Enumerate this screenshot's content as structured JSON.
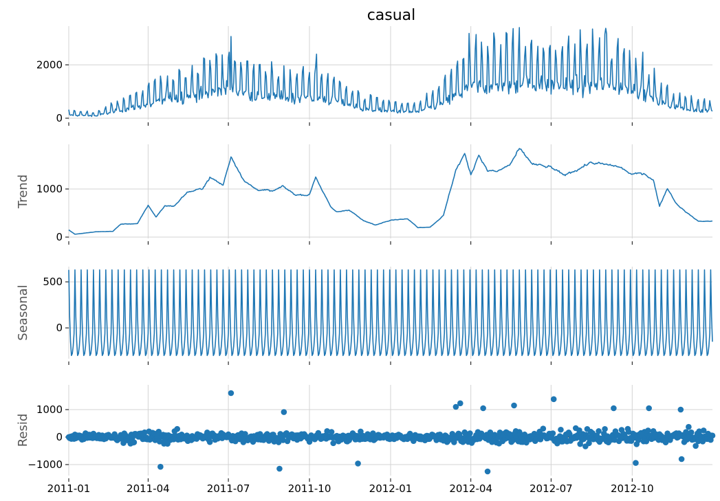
{
  "chart_data": {
    "type": "line",
    "title": "casual",
    "x_ticks": [
      "2011-01",
      "2011-04",
      "2011-07",
      "2011-10",
      "2012-01",
      "2012-04",
      "2012-07",
      "2012-10"
    ],
    "x_range": [
      "2011-01-01",
      "2012-12-31"
    ],
    "grid": true,
    "legend": "none",
    "colors": {
      "series": "#1f77b4",
      "grid": "#d3d3d3",
      "zero_line": "#000000",
      "label": "#555555"
    },
    "panels": [
      {
        "name": "observed",
        "ylabel": "",
        "ylim": [
          0,
          3400
        ],
        "yticks": [
          0,
          2000
        ],
        "ytick_labels": [
          "0",
          "2000"
        ],
        "style": "line",
        "anchors": [
          [
            "2011-01-01",
            150
          ],
          [
            "2011-02-01",
            110
          ],
          [
            "2011-03-01",
            380
          ],
          [
            "2011-04-01",
            620
          ],
          [
            "2011-05-01",
            950
          ],
          [
            "2011-06-01",
            1080
          ],
          [
            "2011-07-01",
            1380
          ],
          [
            "2011-08-01",
            1050
          ],
          [
            "2011-09-01",
            920
          ],
          [
            "2011-10-01",
            980
          ],
          [
            "2011-11-01",
            800
          ],
          [
            "2011-12-01",
            430
          ],
          [
            "2012-01-01",
            330
          ],
          [
            "2012-02-01",
            280
          ],
          [
            "2012-03-01",
            700
          ],
          [
            "2012-04-01",
            1450
          ],
          [
            "2012-05-01",
            1500
          ],
          [
            "2012-06-01",
            1620
          ],
          [
            "2012-07-01",
            1480
          ],
          [
            "2012-08-01",
            1500
          ],
          [
            "2012-09-01",
            1550
          ],
          [
            "2012-10-01",
            1380
          ],
          [
            "2012-11-01",
            720
          ],
          [
            "2012-12-01",
            400
          ],
          [
            "2012-12-31",
            350
          ]
        ],
        "weekly_amplitude": 0.8,
        "noise": 0.28,
        "peaks": [
          [
            "2011-07-04",
            3065
          ],
          [
            "2012-05-26",
            3410
          ],
          [
            "2012-09-02",
            3160
          ],
          [
            "2011-10-09",
            2400
          ]
        ]
      },
      {
        "name": "trend",
        "ylabel": "Trend",
        "ylim": [
          0,
          1900
        ],
        "yticks": [
          0,
          1000
        ],
        "ytick_labels": [
          "0",
          "1000"
        ],
        "style": "line",
        "anchors": [
          [
            "2011-01-01",
            150
          ],
          [
            "2011-01-08",
            60
          ],
          [
            "2011-02-01",
            110
          ],
          [
            "2011-02-20",
            120
          ],
          [
            "2011-03-01",
            270
          ],
          [
            "2011-03-20",
            280
          ],
          [
            "2011-04-01",
            660
          ],
          [
            "2011-04-10",
            420
          ],
          [
            "2011-04-20",
            650
          ],
          [
            "2011-05-01",
            650
          ],
          [
            "2011-05-15",
            930
          ],
          [
            "2011-06-01",
            1000
          ],
          [
            "2011-06-10",
            1240
          ],
          [
            "2011-06-25",
            1080
          ],
          [
            "2011-07-04",
            1680
          ],
          [
            "2011-07-20",
            1150
          ],
          [
            "2011-08-01",
            1000
          ],
          [
            "2011-08-20",
            950
          ],
          [
            "2011-09-01",
            1050
          ],
          [
            "2011-09-15",
            880
          ],
          [
            "2011-10-01",
            880
          ],
          [
            "2011-10-08",
            1260
          ],
          [
            "2011-10-25",
            620
          ],
          [
            "2011-11-01",
            520
          ],
          [
            "2011-11-15",
            570
          ],
          [
            "2011-12-01",
            340
          ],
          [
            "2011-12-15",
            250
          ],
          [
            "2012-01-01",
            360
          ],
          [
            "2012-01-20",
            380
          ],
          [
            "2012-02-01",
            200
          ],
          [
            "2012-02-15",
            210
          ],
          [
            "2012-03-01",
            450
          ],
          [
            "2012-03-15",
            1400
          ],
          [
            "2012-03-25",
            1720
          ],
          [
            "2012-04-01",
            1300
          ],
          [
            "2012-04-10",
            1720
          ],
          [
            "2012-04-20",
            1380
          ],
          [
            "2012-05-01",
            1360
          ],
          [
            "2012-05-15",
            1500
          ],
          [
            "2012-05-26",
            1820
          ],
          [
            "2012-06-10",
            1520
          ],
          [
            "2012-06-25",
            1460
          ],
          [
            "2012-07-01",
            1450
          ],
          [
            "2012-07-15",
            1280
          ],
          [
            "2012-08-01",
            1420
          ],
          [
            "2012-08-15",
            1550
          ],
          [
            "2012-09-01",
            1500
          ],
          [
            "2012-09-15",
            1470
          ],
          [
            "2012-10-01",
            1300
          ],
          [
            "2012-10-15",
            1330
          ],
          [
            "2012-10-25",
            1180
          ],
          [
            "2012-11-01",
            650
          ],
          [
            "2012-11-10",
            1020
          ],
          [
            "2012-11-20",
            700
          ],
          [
            "2012-12-01",
            520
          ],
          [
            "2012-12-15",
            330
          ],
          [
            "2012-12-31",
            330
          ]
        ],
        "noise": 0.05
      },
      {
        "name": "seasonal",
        "ylabel": "Seasonal",
        "ylim": [
          -320,
          650
        ],
        "yticks": [
          0,
          500
        ],
        "ytick_labels": [
          "0",
          "500"
        ],
        "style": "line",
        "period_days": 7,
        "max": 630,
        "min": -300,
        "pattern": [
          630,
          120,
          -150,
          -300,
          -280,
          -200,
          -60
        ]
      },
      {
        "name": "resid",
        "ylabel": "Resid",
        "ylim": [
          -1350,
          1850
        ],
        "yticks": [
          -1000,
          0,
          1000
        ],
        "ytick_labels": [
          "−1000",
          "0",
          "1000"
        ],
        "style": "scatter",
        "zero_line": true,
        "typical_spread": [
          220,
          350,
          320,
          300,
          280,
          250,
          220,
          420,
          450,
          420,
          400,
          380
        ],
        "outliers": [
          [
            "2011-07-04",
            1600
          ],
          [
            "2011-09-02",
            910
          ],
          [
            "2011-04-15",
            -1080
          ],
          [
            "2011-08-28",
            -1150
          ],
          [
            "2011-11-25",
            -960
          ],
          [
            "2012-03-20",
            1230
          ],
          [
            "2012-03-15",
            1100
          ],
          [
            "2012-04-15",
            1050
          ],
          [
            "2012-05-20",
            1150
          ],
          [
            "2012-07-04",
            1380
          ],
          [
            "2012-09-10",
            1050
          ],
          [
            "2012-10-05",
            1180
          ],
          [
            "2012-10-20",
            1050
          ],
          [
            "2012-11-25",
            1000
          ],
          [
            "2012-04-20",
            -1250
          ],
          [
            "2012-10-05",
            -940
          ],
          [
            "2012-11-26",
            -800
          ]
        ]
      }
    ]
  }
}
